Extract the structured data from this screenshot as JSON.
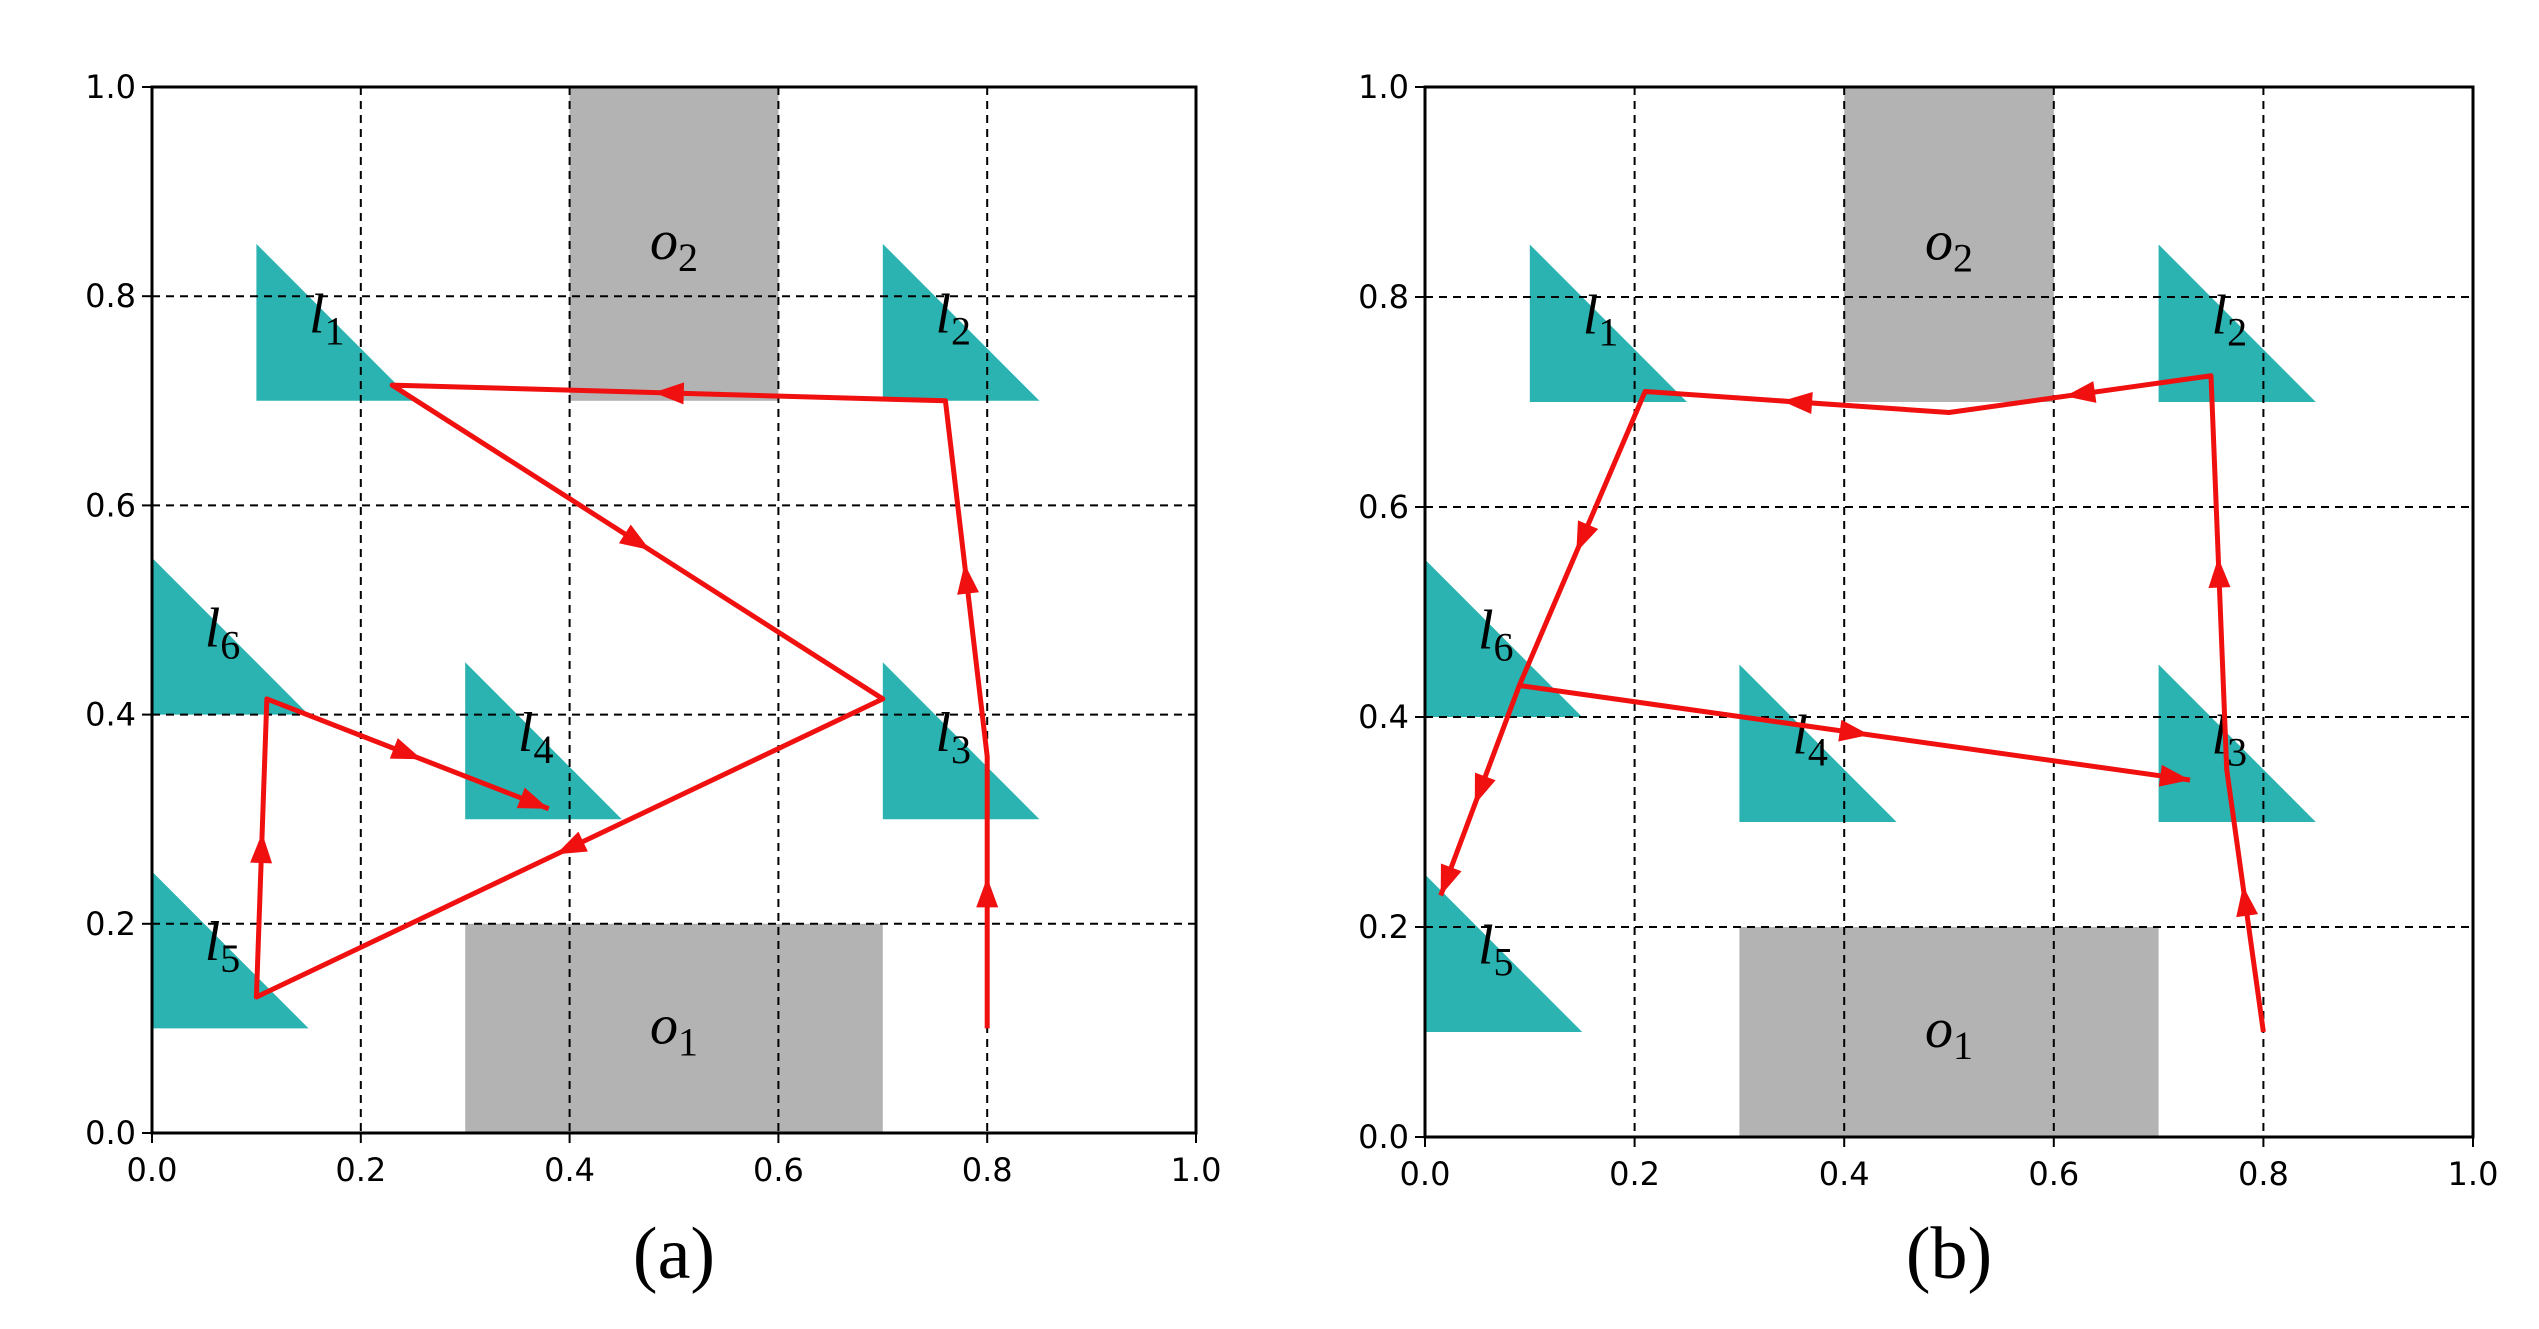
{
  "chart_data": [
    {
      "type": "trajectory",
      "caption": "(a)",
      "xlim": [
        0,
        1
      ],
      "ylim": [
        0,
        1
      ],
      "xticks": [
        {
          "value": 0,
          "label": "0.0"
        },
        0.2,
        0.4,
        0.6,
        0.8,
        {
          "value": 1,
          "label": "1.0"
        }
      ],
      "yticks": [
        {
          "value": 0,
          "label": "0.0"
        },
        0.2,
        0.4,
        0.6,
        0.8,
        {
          "value": 1,
          "label": "1.0"
        }
      ],
      "grid": true,
      "obstacle_color": "#b3b3b3",
      "obstacles": [
        {
          "name": "o1",
          "x": [
            0.3,
            0.7
          ],
          "y": [
            0,
            0.2
          ]
        },
        {
          "name": "o2",
          "x": [
            0.4,
            0.6
          ],
          "y": [
            0.7,
            1.0
          ]
        }
      ],
      "landmark_color": "#2ab3b0",
      "landmark_size": 0.15,
      "landmarks": [
        {
          "name": "l1",
          "x": 0.1,
          "y": 0.7
        },
        {
          "name": "l2",
          "x": 0.7,
          "y": 0.7
        },
        {
          "name": "l3",
          "x": 0.7,
          "y": 0.3
        },
        {
          "name": "l4",
          "x": 0.3,
          "y": 0.3
        },
        {
          "name": "l5",
          "x": 0.0,
          "y": 0.1
        },
        {
          "name": "l6",
          "x": 0.0,
          "y": 0.4
        }
      ],
      "paths": [
        {
          "color": "#f01010",
          "x": [
            0.8,
            0.8,
            0.76,
            0.23,
            0.7,
            0.1,
            0.11,
            0.38
          ],
          "y": [
            0.1,
            0.36,
            0.7,
            0.715,
            0.415,
            0.13,
            0.415,
            0.31
          ]
        }
      ]
    },
    {
      "type": "trajectory",
      "caption": "(b)",
      "xlim": [
        0,
        1
      ],
      "ylim": [
        0,
        1
      ],
      "xticks": [
        {
          "value": 0,
          "label": "0.0"
        },
        0.2,
        0.4,
        0.6,
        0.8,
        {
          "value": 1,
          "label": "1.0"
        }
      ],
      "yticks": [
        {
          "value": 0,
          "label": "0.0"
        },
        0.2,
        0.4,
        0.6,
        0.8,
        {
          "value": 1,
          "label": "1.0"
        }
      ],
      "grid": true,
      "obstacle_color": "#b3b3b3",
      "obstacles": [
        {
          "name": "o1",
          "x": [
            0.3,
            0.7
          ],
          "y": [
            0,
            0.2
          ]
        },
        {
          "name": "o2",
          "x": [
            0.4,
            0.6
          ],
          "y": [
            0.7,
            1.0
          ]
        }
      ],
      "landmark_color": "#2ab3b0",
      "landmark_size": 0.15,
      "landmarks": [
        {
          "name": "l1",
          "x": 0.1,
          "y": 0.7
        },
        {
          "name": "l2",
          "x": 0.7,
          "y": 0.7
        },
        {
          "name": "l3",
          "x": 0.7,
          "y": 0.3
        },
        {
          "name": "l4",
          "x": 0.3,
          "y": 0.3
        },
        {
          "name": "l5",
          "x": 0.0,
          "y": 0.1
        },
        {
          "name": "l6",
          "x": 0.0,
          "y": 0.4
        }
      ],
      "paths": [
        {
          "color": "#f01010",
          "x": [
            0.8,
            0.765,
            0.75,
            0.5,
            0.21,
            0.09,
            0.73
          ],
          "y": [
            0.1,
            0.35,
            0.725,
            0.69,
            0.71,
            0.43,
            0.34
          ]
        },
        {
          "color": "#f01010",
          "x": [
            0.09,
            0.015
          ],
          "y": [
            0.43,
            0.23
          ]
        }
      ]
    }
  ]
}
